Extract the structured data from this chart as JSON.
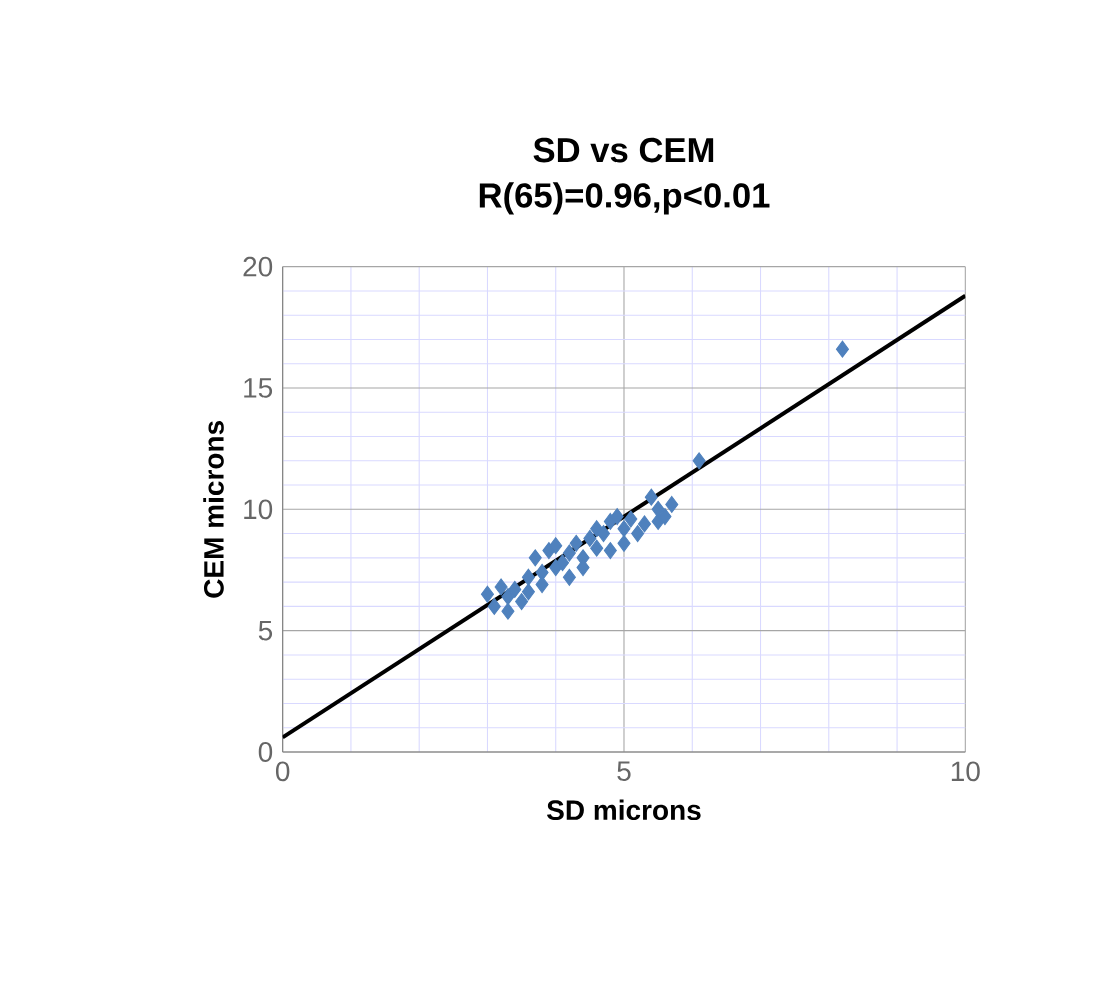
{
  "chart_data": {
    "type": "scatter",
    "title": "SD vs CEM",
    "subtitle": "R(65)=0.96,p<0.01",
    "xlabel": "SD microns",
    "ylabel": "CEM microns",
    "xlim": [
      0,
      10
    ],
    "ylim": [
      0,
      20
    ],
    "xticks": [
      0,
      5,
      10
    ],
    "yticks": [
      0,
      5,
      10,
      15,
      20
    ],
    "grid": true,
    "series": [
      {
        "marker": "diamond",
        "color": "#4f81bd",
        "x": [
          3.0,
          3.1,
          3.2,
          3.3,
          3.3,
          3.4,
          3.5,
          3.6,
          3.6,
          3.7,
          3.8,
          3.8,
          3.9,
          4.0,
          4.0,
          4.1,
          4.2,
          4.2,
          4.3,
          4.4,
          4.4,
          4.5,
          4.6,
          4.6,
          4.7,
          4.8,
          4.8,
          4.9,
          5.0,
          5.0,
          5.1,
          5.2,
          5.3,
          5.4,
          5.5,
          5.5,
          5.6,
          5.7,
          6.1,
          8.2
        ],
        "values": [
          6.5,
          6.0,
          6.8,
          5.8,
          6.4,
          6.7,
          6.2,
          7.2,
          6.6,
          8.0,
          7.4,
          6.9,
          8.3,
          7.6,
          8.5,
          7.8,
          8.2,
          7.2,
          8.6,
          8.0,
          7.6,
          8.8,
          9.2,
          8.4,
          9.0,
          9.5,
          8.3,
          9.7,
          9.2,
          8.6,
          9.6,
          9.0,
          9.4,
          10.5,
          9.5,
          10.0,
          9.7,
          10.2,
          12.0,
          16.6
        ]
      },
      {
        "type": "line",
        "color": "#000000",
        "x": [
          0,
          10
        ],
        "values": [
          0.6,
          18.8
        ]
      }
    ]
  }
}
